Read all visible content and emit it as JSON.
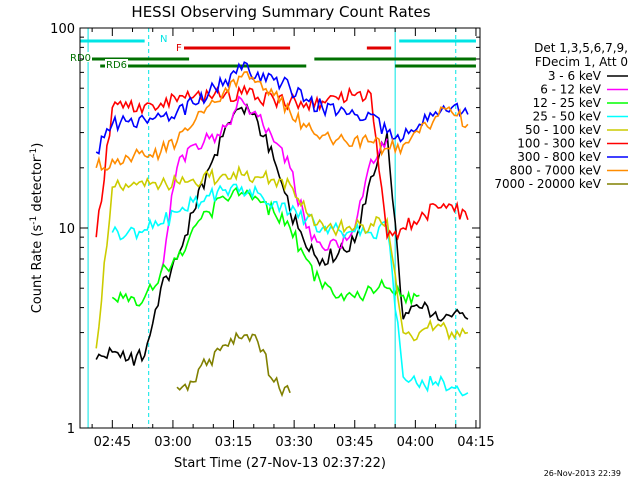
{
  "chart_data": {
    "type": "line",
    "title": "HESSI Observing Summary Count Rates",
    "xlabel": "Start Time (27-Nov-13 02:37:22)",
    "ylabel": "Count Rate (s⁻¹ detector⁻¹)",
    "ylabel_parts": [
      "Count Rate (s",
      "-1",
      " detector",
      "-1",
      ")"
    ],
    "x_unit": "minutes after 02:37:22",
    "xlim": [
      0,
      99
    ],
    "ylim": [
      1,
      100
    ],
    "y_scale": "log",
    "x_ticks": [
      {
        "value": 8,
        "label": "02:45"
      },
      {
        "value": 23,
        "label": "03:00"
      },
      {
        "value": 38,
        "label": "03:15"
      },
      {
        "value": 53,
        "label": "03:30"
      },
      {
        "value": 68,
        "label": "03:45"
      },
      {
        "value": 83,
        "label": "04:00"
      },
      {
        "value": 98,
        "label": "04:15"
      }
    ],
    "y_ticks": [
      {
        "value": 1,
        "label": "1"
      },
      {
        "value": 10,
        "label": "10"
      },
      {
        "value": 100,
        "label": "100"
      }
    ],
    "legend_header": [
      "Det 1,3,5,6,7,9,",
      "FDecim 1, Att 0"
    ],
    "legend_position": "right",
    "date_stamp": "26-Nov-2013 22:39",
    "flags": [
      {
        "name": "N",
        "color": "#00e5e5",
        "segments": [
          [
            0,
            16
          ],
          [
            79,
            98
          ]
        ]
      },
      {
        "name": "F",
        "color": "#e00000",
        "segments": [
          [
            25,
            52
          ],
          [
            71,
            77
          ]
        ]
      },
      {
        "name": "RD0",
        "color": "#007000",
        "segments": [
          [
            0,
            27
          ],
          [
            58,
            98
          ]
        ]
      },
      {
        "name": "RD6",
        "color": "#007000",
        "segments": [
          [
            5,
            56
          ],
          [
            78,
            98
          ]
        ]
      }
    ],
    "night_lines": [
      {
        "x": 2,
        "style": "solid"
      },
      {
        "x": 17,
        "style": "dashed"
      },
      {
        "x": 78,
        "style": "solid"
      },
      {
        "x": 93,
        "style": "dashed"
      }
    ],
    "x": [
      4,
      8,
      12,
      16,
      20,
      24,
      28,
      32,
      36,
      40,
      44,
      48,
      52,
      56,
      60,
      64,
      68,
      72,
      76,
      80,
      84,
      88,
      92,
      96
    ],
    "series": [
      {
        "name": "3 - 6 keV",
        "color": "#000000",
        "values": [
          2.2,
          2.4,
          2.2,
          2.3,
          5.0,
          7.0,
          12.0,
          20.0,
          32.0,
          40.0,
          34.0,
          22.0,
          12.0,
          8.0,
          7.0,
          7.5,
          8.5,
          18.0,
          30.0,
          3.5,
          4.0,
          3.8,
          3.6,
          3.5
        ]
      },
      {
        "name": "6 - 12 keV",
        "color": "#ff00ff",
        "values": [
          null,
          null,
          null,
          null,
          6.0,
          20.0,
          26.0,
          28.0,
          32.0,
          44.0,
          36.0,
          27.0,
          20.0,
          10.0,
          8.0,
          8.0,
          10.0,
          22.0,
          28.0,
          null,
          null,
          null,
          null,
          null
        ]
      },
      {
        "name": "12 - 25 keV",
        "color": "#00ff00",
        "values": [
          null,
          4.5,
          4.3,
          4.5,
          6.0,
          7.0,
          10.0,
          12.0,
          14.0,
          15.0,
          14.0,
          12.0,
          10.0,
          7.0,
          5.0,
          4.5,
          4.5,
          5.0,
          5.0,
          4.6,
          4.6,
          null,
          null,
          null
        ]
      },
      {
        "name": "25 - 50 keV",
        "color": "#00ffff",
        "values": [
          null,
          9.5,
          9.6,
          9.8,
          10.5,
          12.0,
          13.5,
          14.5,
          15.5,
          16.0,
          15.0,
          13.5,
          12.0,
          11.0,
          10.0,
          9.8,
          9.6,
          9.5,
          10.0,
          1.8,
          1.6,
          1.7,
          1.6,
          1.5
        ]
      },
      {
        "name": "50 - 100 keV",
        "color": "#cccc00",
        "values": [
          2.5,
          16.0,
          16.0,
          16.2,
          16.5,
          17.0,
          17.5,
          18.0,
          18.5,
          18.5,
          18.0,
          17.5,
          16.5,
          12.0,
          10.5,
          10.0,
          10.0,
          10.5,
          11.0,
          3.0,
          3.0,
          3.2,
          3.0,
          3.0
        ]
      },
      {
        "name": "100 - 300 keV",
        "color": "#ff0000",
        "values": [
          9.0,
          40.0,
          40.0,
          41.0,
          42.0,
          43.0,
          45.0,
          46.0,
          47.0,
          47.0,
          45.0,
          44.0,
          43.0,
          42.0,
          43.0,
          44.0,
          46.0,
          47.0,
          9.0,
          10.0,
          11.0,
          13.0,
          13.0,
          11.0
        ]
      },
      {
        "name": "300 - 800 keV",
        "color": "#0000ff",
        "values": [
          24.0,
          33.0,
          34.0,
          35.0,
          36.0,
          38.0,
          42.0,
          48.0,
          55.0,
          62.0,
          60.0,
          55.0,
          50.0,
          44.0,
          40.0,
          38.0,
          37.0,
          37.0,
          30.0,
          28.0,
          33.0,
          38.0,
          40.0,
          37.0
        ]
      },
      {
        "name": "800 - 7000 keV",
        "color": "#ff8c00",
        "values": [
          20.0,
          22.0,
          22.5,
          23.0,
          24.0,
          27.0,
          33.0,
          41.0,
          50.0,
          57.0,
          54.0,
          46.0,
          38.0,
          32.0,
          29.0,
          28.0,
          28.0,
          27.0,
          25.0,
          26.0,
          30.0,
          36.0,
          38.0,
          33.0
        ]
      },
      {
        "name": "7000 - 20000 keV",
        "color": "#808000",
        "values": [
          null,
          null,
          null,
          null,
          null,
          1.6,
          1.7,
          2.2,
          2.6,
          2.8,
          2.7,
          1.7,
          1.5,
          null,
          null,
          null,
          null,
          null,
          null,
          null,
          null,
          null,
          null,
          null
        ]
      }
    ]
  }
}
